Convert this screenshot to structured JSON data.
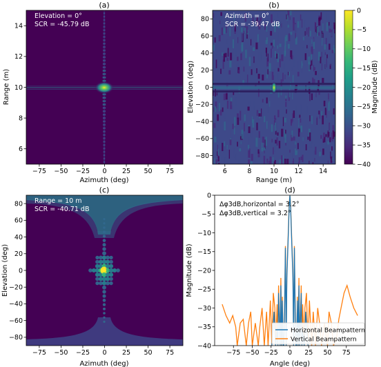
{
  "colors": {
    "cmap": [
      "#440154",
      "#482878",
      "#3e4989",
      "#31688e",
      "#26828e",
      "#1f9e89",
      "#35b779",
      "#6ece58",
      "#b5de2b",
      "#fde725"
    ],
    "horizontal": "#1f77b4",
    "vertical": "#ff7f0e"
  },
  "chart_data": [
    {
      "panel": "a",
      "type": "heatmap",
      "title": "(a)",
      "xlabel": "Azimuth (deg)",
      "ylabel": "Range (m)",
      "xlim": [
        -90,
        90
      ],
      "ylim": [
        5,
        15
      ],
      "xticks": [
        -75,
        -50,
        -25,
        0,
        25,
        50,
        75
      ],
      "yticks": [
        6,
        8,
        10,
        12,
        14
      ],
      "annotations": [
        "Elevation = 0°",
        "SCR  = -45.79 dB"
      ]
    },
    {
      "panel": "b",
      "type": "heatmap",
      "title": "(b)",
      "xlabel": "Range (m)",
      "ylabel": "Elevation (deg)",
      "xlim": [
        5,
        15
      ],
      "ylim": [
        -90,
        90
      ],
      "xticks": [
        6,
        8,
        10,
        12,
        14
      ],
      "yticks": [
        -80,
        -60,
        -40,
        -20,
        0,
        20,
        40,
        60,
        80
      ],
      "annotations": [
        "Azimuth = 0°",
        "SCR  = -39.47 dB"
      ],
      "colorbar": {
        "label": "Magnitude (dB)",
        "min": -40,
        "max": 0,
        "ticks": [
          0,
          -5,
          -10,
          -15,
          -20,
          -25,
          -30,
          -35,
          -40
        ]
      }
    },
    {
      "panel": "c",
      "type": "heatmap",
      "title": "(c)",
      "xlabel": "Azimuth (deg)",
      "ylabel": "Elevation (deg)",
      "xlim": [
        -90,
        90
      ],
      "ylim": [
        -90,
        90
      ],
      "xticks": [
        -75,
        -50,
        -25,
        0,
        25,
        50,
        75
      ],
      "yticks": [
        -80,
        -60,
        -40,
        -20,
        0,
        20,
        40,
        60,
        80
      ],
      "annotations": [
        "Range = 10 m",
        "SCR  = -40.71 dB"
      ]
    },
    {
      "panel": "d",
      "type": "line",
      "title": "(d)",
      "xlabel": "Angle (deg)",
      "ylabel": "Magnitude (dB)",
      "xlim": [
        -100,
        100
      ],
      "ylim": [
        -40,
        0
      ],
      "xticks": [
        -75,
        -50,
        -25,
        0,
        25,
        50,
        75
      ],
      "yticks": [
        0,
        -5,
        -10,
        -15,
        -20,
        -25,
        -30,
        -35,
        -40
      ],
      "annotations": [
        "Δφ3dB,horizontal =  3.2°",
        "Δφ3dB,vertical =  3.2°"
      ],
      "legend": "lower-right",
      "series": [
        {
          "name": "Horizontal Beampattern",
          "x": [
            -24,
            -21,
            -19,
            -17,
            -16,
            -15,
            -13,
            -12,
            -11,
            -10,
            -9,
            -8,
            -7,
            -6,
            -5,
            -4,
            -3,
            -2,
            -1,
            0,
            1,
            2,
            3,
            4,
            5,
            6,
            7,
            8,
            9,
            10,
            11,
            12,
            13,
            15,
            16,
            17,
            19,
            21,
            24
          ],
          "y": [
            -40,
            -31,
            -40,
            -36,
            -40,
            -26,
            -40,
            -24,
            -40,
            -28,
            -40,
            -40,
            -30,
            -14,
            -40,
            -22,
            -16,
            -10,
            -3.5,
            0,
            -3.5,
            -10,
            -16,
            -22,
            -40,
            -14,
            -30,
            -40,
            -40,
            -28,
            -40,
            -24,
            -40,
            -26,
            -40,
            -36,
            -40,
            -31,
            -40
          ]
        },
        {
          "name": "Vertical Beampattern",
          "x": [
            -90,
            -85,
            -80,
            -76,
            -72,
            -70,
            -66,
            -62,
            -58,
            -55,
            -52,
            -50,
            -46,
            -42,
            -40,
            -37,
            -34,
            -31,
            -29,
            -26,
            -24,
            -22,
            -20,
            -19,
            -17,
            -16,
            -15,
            -13,
            -12,
            -11,
            -10,
            -9,
            -8,
            -7,
            -6,
            -5,
            -4,
            -3,
            -2,
            -1,
            0,
            1,
            2,
            3,
            4,
            5,
            6,
            7,
            8,
            9,
            10,
            11,
            12,
            13,
            15,
            16,
            17,
            19,
            20,
            22,
            24,
            26,
            29,
            31,
            34,
            37,
            40,
            42,
            46,
            50,
            52,
            55,
            58,
            62,
            65,
            68,
            72,
            76,
            80,
            85,
            90
          ],
          "y": [
            -29,
            -32,
            -34,
            -32,
            -35,
            -40,
            -34,
            -33,
            -40,
            -34,
            -31,
            -40,
            -34,
            -40,
            -35,
            -30,
            -40,
            -31,
            -40,
            -28,
            -40,
            -26,
            -30,
            -40,
            -29,
            -40,
            -24,
            -40,
            -22,
            -40,
            -27,
            -40,
            -40,
            -28,
            -13.5,
            -40,
            -21,
            -15,
            -9,
            -2.5,
            0,
            -2.5,
            -9,
            -15,
            -21,
            -40,
            -13.5,
            -28,
            -40,
            -40,
            -27,
            -40,
            -22,
            -40,
            -24,
            -40,
            -29,
            -40,
            -30,
            -26,
            -40,
            -28,
            -40,
            -31,
            -40,
            -30,
            -35,
            -40,
            -34,
            -40,
            -31,
            -34,
            -40,
            -38,
            -33,
            -30,
            -26,
            -24,
            -27,
            -30,
            -32
          ]
        }
      ]
    }
  ]
}
